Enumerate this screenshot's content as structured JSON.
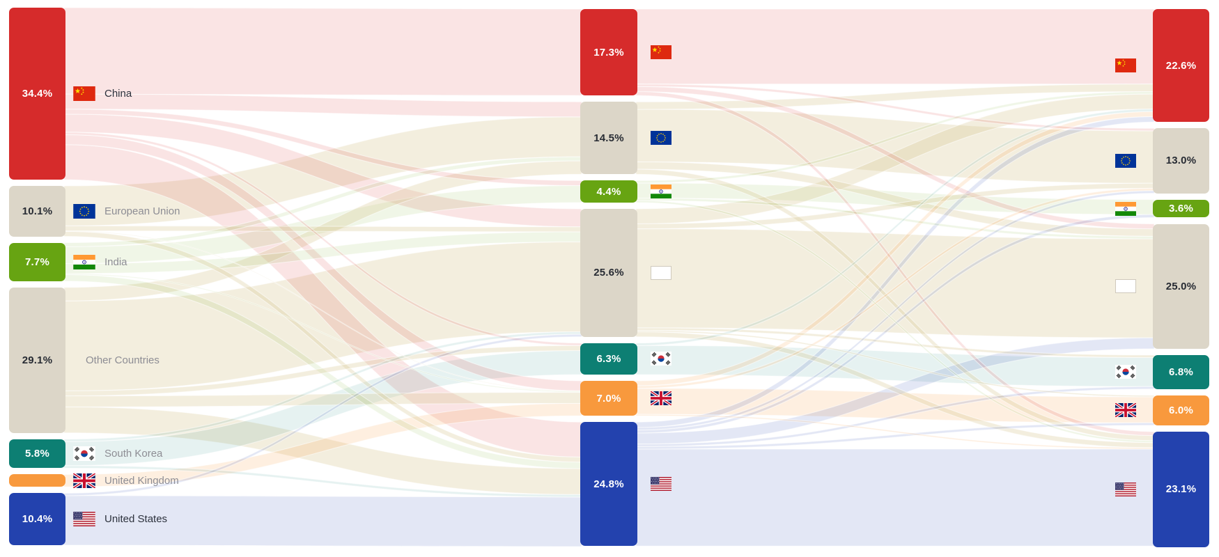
{
  "chart_data": {
    "type": "sankey",
    "unit": "%",
    "stages": 3,
    "grid": false,
    "background": "#ffffff",
    "nodes": [
      {
        "id": "china",
        "label": "China",
        "flag": "cn",
        "color": "#d62b2b",
        "ribbon_color": "#d62b2b",
        "ribbon_opacity": 0.13,
        "pct_dark": false,
        "emphasis": true,
        "left_flag": true,
        "values": [
          34.4,
          17.3,
          22.6
        ],
        "labels": [
          "34.4%",
          "17.3%",
          "22.6%"
        ]
      },
      {
        "id": "eu",
        "label": "European Union",
        "flag": "eu",
        "color": "#dcd6c8",
        "ribbon_color": "#d8c893",
        "ribbon_opacity": 0.3,
        "pct_dark": true,
        "emphasis": false,
        "left_flag": true,
        "values": [
          10.1,
          14.5,
          13.0
        ],
        "labels": [
          "10.1%",
          "14.5%",
          "13.0%"
        ]
      },
      {
        "id": "india",
        "label": "India",
        "flag": "in",
        "color": "#67a412",
        "ribbon_color": "#67a412",
        "ribbon_opacity": 0.1,
        "pct_dark": false,
        "emphasis": false,
        "left_flag": true,
        "values": [
          7.7,
          4.4,
          3.6
        ],
        "labels": [
          "7.7%",
          "4.4%",
          "3.6%"
        ]
      },
      {
        "id": "other",
        "label": "Other Countries",
        "flag": "box",
        "color": "#dcd6c8",
        "ribbon_color": "#d8c893",
        "ribbon_opacity": 0.3,
        "pct_dark": true,
        "emphasis": false,
        "left_flag": false,
        "values": [
          29.1,
          25.6,
          25.0
        ],
        "labels": [
          "29.1%",
          "25.6%",
          "25.0%"
        ]
      },
      {
        "id": "kr",
        "label": "South Korea",
        "flag": "kr",
        "color": "#0d7f73",
        "ribbon_color": "#0d7f73",
        "ribbon_opacity": 0.1,
        "pct_dark": false,
        "emphasis": false,
        "left_flag": true,
        "values": [
          5.8,
          6.3,
          6.8
        ],
        "labels": [
          "5.8%",
          "6.3%",
          "6.8%"
        ]
      },
      {
        "id": "uk",
        "label": "United Kingdom",
        "flag": "gb",
        "color": "#f8993d",
        "ribbon_color": "#f8993d",
        "ribbon_opacity": 0.16,
        "pct_dark": false,
        "emphasis": false,
        "left_flag": true,
        "values": [
          2.5,
          7.0,
          6.0
        ],
        "labels": [
          "",
          "7.0%",
          "6.0%"
        ]
      },
      {
        "id": "us",
        "label": "United States",
        "flag": "us",
        "color": "#2342ae",
        "ribbon_color": "#2342ae",
        "ribbon_opacity": 0.13,
        "pct_dark": false,
        "emphasis": true,
        "left_flag": true,
        "values": [
          10.4,
          24.8,
          23.1
        ],
        "labels": [
          "10.4%",
          "24.8%",
          "23.1%"
        ]
      }
    ],
    "links_stage1": [
      {
        "source": "china",
        "target": "china",
        "value": 17.3
      },
      {
        "source": "china",
        "target": "eu",
        "value": 3.0
      },
      {
        "source": "china",
        "target": "india",
        "value": 1.0
      },
      {
        "source": "china",
        "target": "other",
        "value": 3.6
      },
      {
        "source": "china",
        "target": "kr",
        "value": 0.5
      },
      {
        "source": "china",
        "target": "uk",
        "value": 2.0
      },
      {
        "source": "china",
        "target": "us",
        "value": 7.0
      },
      {
        "source": "eu",
        "target": "eu",
        "value": 8.0
      },
      {
        "source": "eu",
        "target": "other",
        "value": 1.0
      },
      {
        "source": "eu",
        "target": "uk",
        "value": 0.1
      },
      {
        "source": "eu",
        "target": "us",
        "value": 1.0
      },
      {
        "source": "india",
        "target": "eu",
        "value": 0.8
      },
      {
        "source": "india",
        "target": "india",
        "value": 3.4
      },
      {
        "source": "india",
        "target": "other",
        "value": 2.0
      },
      {
        "source": "india",
        "target": "uk",
        "value": 0.2
      },
      {
        "source": "india",
        "target": "us",
        "value": 1.3
      },
      {
        "source": "other",
        "target": "eu",
        "value": 2.7
      },
      {
        "source": "other",
        "target": "other",
        "value": 18.0
      },
      {
        "source": "other",
        "target": "kr",
        "value": 1.0
      },
      {
        "source": "other",
        "target": "uk",
        "value": 2.2
      },
      {
        "source": "other",
        "target": "us",
        "value": 5.2
      },
      {
        "source": "kr",
        "target": "other",
        "value": 0.5
      },
      {
        "source": "kr",
        "target": "kr",
        "value": 4.8
      },
      {
        "source": "kr",
        "target": "us",
        "value": 0.5
      },
      {
        "source": "uk",
        "target": "uk",
        "value": 2.5
      },
      {
        "source": "us",
        "target": "other",
        "value": 0.5
      },
      {
        "source": "us",
        "target": "us",
        "value": 9.9
      }
    ],
    "links_stage2": [
      {
        "source": "china",
        "target": "china",
        "value": 15.0
      },
      {
        "source": "china",
        "target": "eu",
        "value": 0.5
      },
      {
        "source": "china",
        "target": "other",
        "value": 1.0
      },
      {
        "source": "china",
        "target": "us",
        "value": 0.8
      },
      {
        "source": "eu",
        "target": "china",
        "value": 1.5
      },
      {
        "source": "eu",
        "target": "eu",
        "value": 10.5
      },
      {
        "source": "eu",
        "target": "other",
        "value": 1.5
      },
      {
        "source": "eu",
        "target": "us",
        "value": 1.0
      },
      {
        "source": "india",
        "target": "china",
        "value": 0.5
      },
      {
        "source": "india",
        "target": "india",
        "value": 3.0
      },
      {
        "source": "india",
        "target": "other",
        "value": 0.5
      },
      {
        "source": "india",
        "target": "us",
        "value": 0.4
      },
      {
        "source": "other",
        "target": "china",
        "value": 3.0
      },
      {
        "source": "other",
        "target": "eu",
        "value": 1.0
      },
      {
        "source": "other",
        "target": "other",
        "value": 19.8
      },
      {
        "source": "other",
        "target": "kr",
        "value": 0.5
      },
      {
        "source": "other",
        "target": "uk",
        "value": 0.3
      },
      {
        "source": "other",
        "target": "us",
        "value": 1.0
      },
      {
        "source": "kr",
        "target": "china",
        "value": 0.5
      },
      {
        "source": "kr",
        "target": "kr",
        "value": 5.8
      },
      {
        "source": "uk",
        "target": "china",
        "value": 1.0
      },
      {
        "source": "uk",
        "target": "eu",
        "value": 0.5
      },
      {
        "source": "uk",
        "target": "uk",
        "value": 5.2
      },
      {
        "source": "uk",
        "target": "us",
        "value": 0.3
      },
      {
        "source": "us",
        "target": "china",
        "value": 1.1
      },
      {
        "source": "us",
        "target": "eu",
        "value": 0.5
      },
      {
        "source": "us",
        "target": "india",
        "value": 0.6
      },
      {
        "source": "us",
        "target": "other",
        "value": 2.2
      },
      {
        "source": "us",
        "target": "kr",
        "value": 0.5
      },
      {
        "source": "us",
        "target": "uk",
        "value": 0.5
      },
      {
        "source": "us",
        "target": "us",
        "value": 19.4
      }
    ],
    "text_colors": {
      "percent_dark": "#272b33",
      "percent_light": "#ffffff",
      "label_emphasis": "#2c313c",
      "label_muted": "#8d8d94"
    }
  }
}
